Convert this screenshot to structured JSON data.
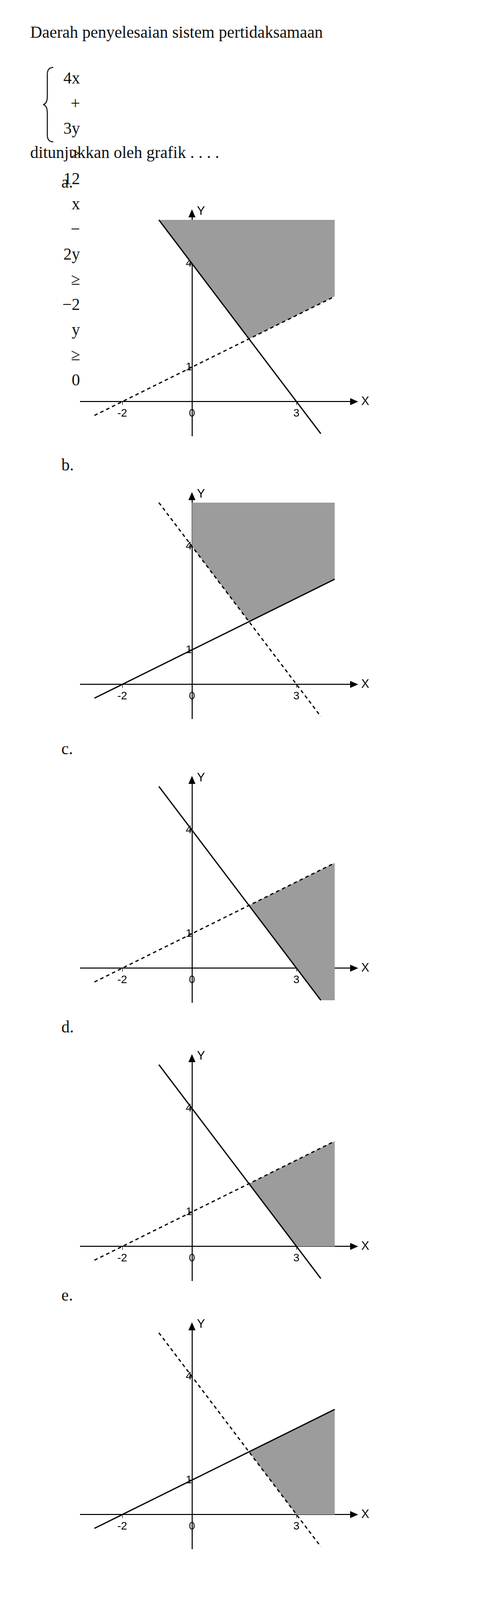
{
  "question": {
    "text": "Daerah penyelesaian sistem pertidaksamaan",
    "system": [
      "4x + 3y > 12",
      "x − 2y ≥ −2",
      "y ≥ 0"
    ],
    "closing": "ditunjukkan oleh grafik . . . ."
  },
  "chart_data": [
    {
      "type": "line",
      "label": "a.",
      "x_label": "X",
      "y_label": "Y",
      "xlim": [
        -3.2,
        4.6
      ],
      "ylim": [
        -1,
        5.4
      ],
      "xticks": [
        -2,
        0,
        3
      ],
      "yticks": [
        1,
        4
      ],
      "grid": false,
      "series": [
        {
          "x": [
            -0.95,
            3.7
          ],
          "values": [
            5.27,
            -0.93
          ],
          "line_style": "solid",
          "color": "#000000"
        },
        {
          "x": [
            -2.8,
            4.1
          ],
          "values": [
            -0.4,
            3.05
          ],
          "line_style": "dashed",
          "color": "#000000"
        }
      ],
      "region": {
        "x": [
          -0.95,
          4.1,
          4.1,
          1.64
        ],
        "values": [
          5.27,
          5.27,
          3.05,
          1.82
        ],
        "color": "#9c9c9c"
      }
    },
    {
      "type": "line",
      "label": "b.",
      "x_label": "X",
      "y_label": "Y",
      "xlim": [
        -3.2,
        4.6
      ],
      "ylim": [
        -1,
        5.4
      ],
      "xticks": [
        -2,
        0,
        3
      ],
      "yticks": [
        1,
        4
      ],
      "grid": false,
      "series": [
        {
          "x": [
            -0.95,
            3.7
          ],
          "values": [
            5.27,
            -0.93
          ],
          "line_style": "dashed",
          "color": "#000000"
        },
        {
          "x": [
            -2.8,
            4.1
          ],
          "values": [
            -0.4,
            3.05
          ],
          "line_style": "solid",
          "color": "#000000"
        }
      ],
      "region": {
        "x": [
          0,
          4.1,
          4.1,
          1.64,
          0
        ],
        "values": [
          5.27,
          5.27,
          3.05,
          1.82,
          4
        ],
        "color": "#9c9c9c"
      }
    },
    {
      "type": "line",
      "label": "c.",
      "x_label": "X",
      "y_label": "Y",
      "xlim": [
        -3.2,
        4.6
      ],
      "ylim": [
        -1,
        5.4
      ],
      "xticks": [
        -2,
        0,
        3
      ],
      "yticks": [
        1,
        4
      ],
      "grid": false,
      "series": [
        {
          "x": [
            -0.95,
            3.7
          ],
          "values": [
            5.27,
            -0.93
          ],
          "line_style": "solid",
          "color": "#000000"
        },
        {
          "x": [
            -2.8,
            4.1
          ],
          "values": [
            -0.4,
            3.05
          ],
          "line_style": "dashed",
          "color": "#000000"
        }
      ],
      "region": {
        "x": [
          1.64,
          4.1,
          4.1,
          3.7
        ],
        "values": [
          1.82,
          3.05,
          -0.93,
          -0.93
        ],
        "color": "#9c9c9c"
      }
    },
    {
      "type": "line",
      "label": "d.",
      "x_label": "X",
      "y_label": "Y",
      "xlim": [
        -3.2,
        4.6
      ],
      "ylim": [
        -1,
        5.4
      ],
      "xticks": [
        -2,
        0,
        3
      ],
      "yticks": [
        1,
        4
      ],
      "grid": false,
      "series": [
        {
          "x": [
            -0.95,
            3.7
          ],
          "values": [
            5.27,
            -0.93
          ],
          "line_style": "solid",
          "color": "#000000"
        },
        {
          "x": [
            -2.8,
            4.1
          ],
          "values": [
            -0.4,
            3.05
          ],
          "line_style": "dashed",
          "color": "#000000"
        }
      ],
      "region": {
        "x": [
          1.64,
          4.1,
          4.1,
          3
        ],
        "values": [
          1.82,
          3.05,
          0,
          0
        ],
        "color": "#9c9c9c"
      }
    },
    {
      "type": "line",
      "label": "e.",
      "x_label": "X",
      "y_label": "Y",
      "xlim": [
        -3.2,
        4.6
      ],
      "ylim": [
        -1,
        5.4
      ],
      "xticks": [
        -2,
        0,
        3
      ],
      "yticks": [
        1,
        4
      ],
      "grid": false,
      "series": [
        {
          "x": [
            -0.95,
            3.7
          ],
          "values": [
            5.27,
            -0.93
          ],
          "line_style": "dashed",
          "color": "#000000"
        },
        {
          "x": [
            -2.8,
            4.1
          ],
          "values": [
            -0.4,
            3.05
          ],
          "line_style": "solid",
          "color": "#000000"
        }
      ],
      "region": {
        "x": [
          1.64,
          4.1,
          4.1,
          3
        ],
        "values": [
          1.82,
          3.05,
          0,
          0
        ],
        "color": "#9c9c9c"
      }
    }
  ]
}
